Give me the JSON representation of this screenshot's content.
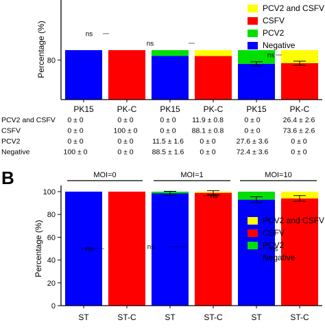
{
  "colors": {
    "pcv2_csfv": "#ffff00",
    "csfv": "#ff0000",
    "pcv2": "#00e000",
    "negative": "#0000ff"
  },
  "panel_b_label": "B",
  "chart_data": [
    {
      "type": "bar",
      "stacked": true,
      "ylabel": "Percentage (%)",
      "ylim": [
        0,
        100
      ],
      "yticks": [
        "80"
      ],
      "categories": [
        "PK15",
        "PK-C",
        "PK15",
        "PK-C",
        "PK15",
        "PK-C"
      ],
      "series": [
        {
          "name": "Negative",
          "values": [
            100,
            0,
            88.5,
            0,
            72.4,
            0
          ]
        },
        {
          "name": "PCV2",
          "values": [
            0,
            0,
            11.5,
            0,
            27.6,
            0
          ]
        },
        {
          "name": "CSFV",
          "values": [
            0,
            100,
            0,
            88.1,
            0,
            73.6
          ]
        },
        {
          "name": "PCV2 and CSFV",
          "values": [
            0,
            0,
            0,
            11.9,
            0,
            26.4
          ]
        }
      ],
      "errors": [
        null,
        null,
        null,
        null,
        3.6,
        2.6
      ],
      "annotations": [
        "ns",
        "ns",
        "ns"
      ],
      "legend": [
        "PCV2 and CSFV",
        "CSFV",
        "PCV2",
        "Negative"
      ],
      "legend_position": "top-right",
      "table": {
        "rows": [
          {
            "label": "PCV2 and CSFV",
            "cells": [
              "0 ± 0",
              "0 ± 0",
              "0 ± 0",
              "11.9 ± 0.8",
              "0 ± 0",
              "26.4 ± 2.6"
            ]
          },
          {
            "label": "CSFV",
            "cells": [
              "0 ± 0",
              "100 ± 0",
              "0 ± 0",
              "88.1 ± 0.8",
              "0 ± 0",
              "73.6 ± 2.6"
            ]
          },
          {
            "label": "PCV2",
            "cells": [
              "0 ± 0",
              "0 ± 0",
              "11.5 ± 1.6",
              "0 ± 0",
              "27.6 ± 3.6",
              "0 ± 0"
            ]
          },
          {
            "label": "Negative",
            "cells": [
              "100 ± 0",
              "0 ± 0",
              "88.5 ± 1.6",
              "0 ± 0",
              "72.4 ± 3.6",
              "0 ± 0"
            ]
          }
        ]
      }
    },
    {
      "type": "bar",
      "stacked": true,
      "ylabel": "Percentage (%)",
      "ylim": [
        0,
        100
      ],
      "yticks": [
        "0",
        "20",
        "40",
        "60",
        "80",
        "100"
      ],
      "groups": [
        "MOI=0",
        "MOI=1",
        "MOI=10"
      ],
      "categories": [
        "ST",
        "ST-C",
        "ST",
        "ST-C",
        "ST",
        "ST-C"
      ],
      "series": [
        {
          "name": "Negative",
          "values": [
            100,
            0,
            98.5,
            0,
            93,
            0
          ]
        },
        {
          "name": "PCV2",
          "values": [
            0,
            0,
            1.5,
            0,
            7,
            0
          ]
        },
        {
          "name": "CSFV",
          "values": [
            0,
            100,
            0,
            99,
            0,
            94
          ]
        },
        {
          "name": "PCV2 and CSFV",
          "values": [
            0,
            0,
            0,
            1,
            0,
            6
          ]
        }
      ],
      "errors": [
        null,
        null,
        1,
        0.5,
        2.5,
        2.5
      ],
      "annotations": [
        "ns",
        "ns",
        "ns",
        "ns"
      ],
      "legend": [
        "PCV2 and CSFV",
        "CSFV",
        "PCV2",
        "Negative"
      ],
      "legend_position": "right"
    }
  ]
}
